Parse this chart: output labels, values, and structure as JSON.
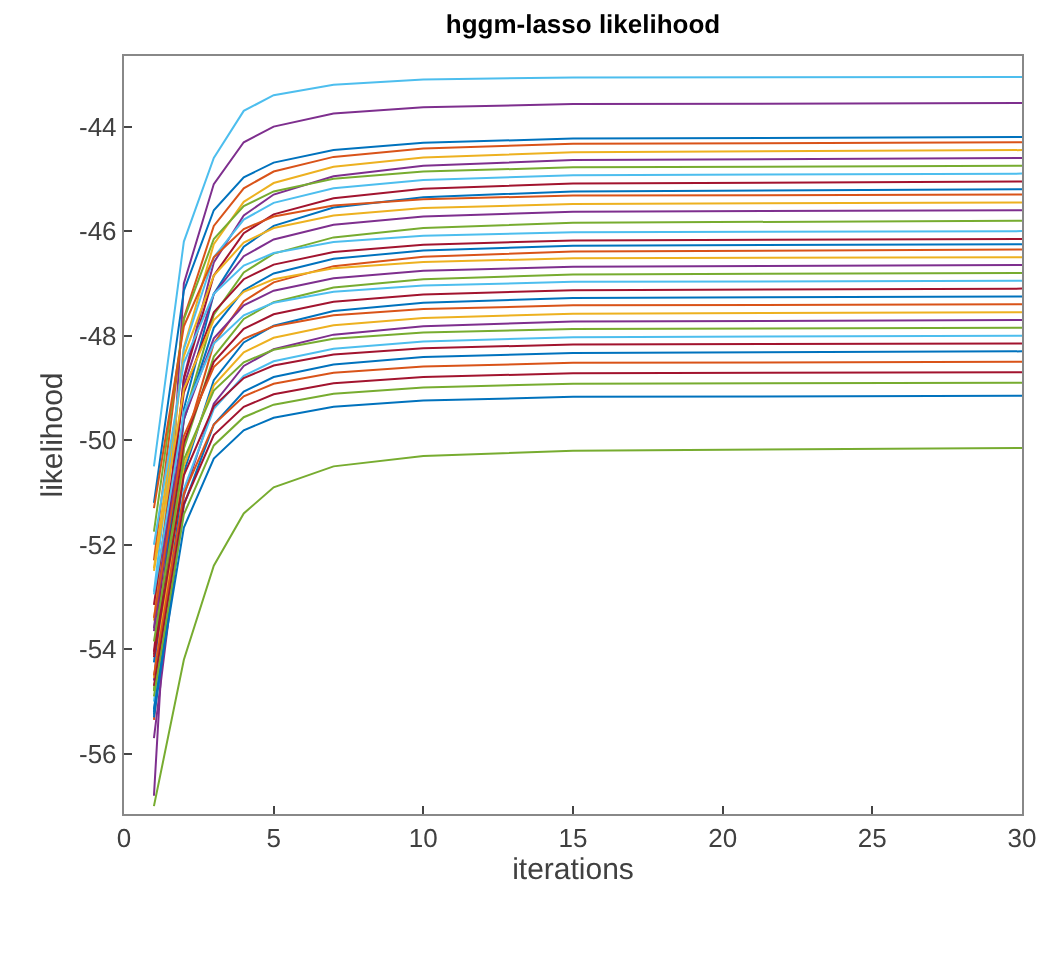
{
  "chart_data": {
    "type": "line",
    "title": "hggm-lasso likelihood",
    "xlabel": "iterations",
    "ylabel": "likelihood",
    "x": [
      1,
      2,
      3,
      4,
      5,
      7,
      10,
      15,
      30
    ],
    "xlim": [
      0,
      30
    ],
    "xticks": [
      0,
      5,
      10,
      15,
      20,
      25,
      30
    ],
    "ylim": [
      -57.15,
      -42.65
    ],
    "yticks": [
      -56,
      -54,
      -52,
      -50,
      -48,
      -46,
      -44
    ],
    "line_style": "solid",
    "series": [
      {
        "color": "#4dbeee",
        "values": [
          -50.5,
          -46.2,
          -44.6,
          -43.7,
          -43.4,
          -43.2,
          -43.1,
          -43.06,
          -43.05
        ]
      },
      {
        "color": "#7e2f8e",
        "values": [
          -56.8,
          -47.0,
          -45.1,
          -44.3,
          -44.0,
          -43.75,
          -43.63,
          -43.57,
          -43.55
        ]
      },
      {
        "color": "#77ac30",
        "values": [
          -57.0,
          -54.2,
          -52.4,
          -51.4,
          -50.9,
          -50.5,
          -50.3,
          -50.2,
          -50.15
        ]
      },
      {
        "color": "#0072bd",
        "values": [
          -51.2,
          -47.14,
          -45.6,
          -44.97,
          -44.69,
          -44.45,
          -44.31,
          -44.23,
          -44.2
        ]
      },
      {
        "color": "#d95319",
        "values": [
          -52.3,
          -47.66,
          -45.9,
          -45.18,
          -44.86,
          -44.58,
          -44.42,
          -44.33,
          -44.3
        ]
      },
      {
        "color": "#edb120",
        "values": [
          -53.45,
          -48.23,
          -46.25,
          -45.44,
          -45.08,
          -44.77,
          -44.59,
          -44.49,
          -44.45
        ]
      },
      {
        "color": "#7e2f8e",
        "values": [
          -54.6,
          -48.8,
          -46.6,
          -45.7,
          -45.3,
          -44.95,
          -44.75,
          -44.64,
          -44.6
        ]
      },
      {
        "color": "#77ac30",
        "values": [
          -51.75,
          -47.69,
          -46.15,
          -45.52,
          -45.24,
          -45.0,
          -44.86,
          -44.78,
          -44.75
        ]
      },
      {
        "color": "#4dbeee",
        "values": [
          -52.9,
          -48.26,
          -46.5,
          -45.78,
          -45.46,
          -45.18,
          -45.02,
          -44.93,
          -44.9
        ]
      },
      {
        "color": "#a2142f",
        "values": [
          -54.05,
          -48.83,
          -46.85,
          -46.04,
          -45.68,
          -45.37,
          -45.19,
          -45.09,
          -45.05
        ]
      },
      {
        "color": "#0072bd",
        "values": [
          -55.2,
          -49.4,
          -47.2,
          -46.3,
          -45.9,
          -45.55,
          -45.35,
          -45.24,
          -45.2
        ]
      },
      {
        "color": "#d95319",
        "values": [
          -51.3,
          -47.82,
          -46.5,
          -45.96,
          -45.72,
          -45.51,
          -45.39,
          -45.32,
          -45.3
        ]
      },
      {
        "color": "#edb120",
        "values": [
          -52.45,
          -48.39,
          -46.85,
          -46.22,
          -45.94,
          -45.7,
          -45.56,
          -45.48,
          -45.45
        ]
      },
      {
        "color": "#7e2f8e",
        "values": [
          -53.6,
          -48.96,
          -47.2,
          -46.48,
          -46.16,
          -45.88,
          -45.72,
          -45.63,
          -45.6
        ]
      },
      {
        "color": "#77ac30",
        "values": [
          -54.8,
          -49.58,
          -47.6,
          -46.79,
          -46.43,
          -46.12,
          -45.94,
          -45.84,
          -45.8
        ]
      },
      {
        "color": "#4dbeee",
        "values": [
          -52.0,
          -48.52,
          -47.2,
          -46.66,
          -46.42,
          -46.21,
          -46.09,
          -46.02,
          -46.0
        ]
      },
      {
        "color": "#a2142f",
        "values": [
          -53.15,
          -49.09,
          -47.55,
          -46.92,
          -46.64,
          -46.4,
          -46.26,
          -46.18,
          -46.15
        ]
      },
      {
        "color": "#0072bd",
        "values": [
          -54.25,
          -49.61,
          -47.85,
          -47.13,
          -46.81,
          -46.53,
          -46.37,
          -46.28,
          -46.25
        ]
      },
      {
        "color": "#d95319",
        "values": [
          -55.35,
          -50.13,
          -48.15,
          -47.34,
          -46.98,
          -46.67,
          -46.49,
          -46.39,
          -46.35
        ]
      },
      {
        "color": "#edb120",
        "values": [
          -52.5,
          -49.02,
          -47.7,
          -47.16,
          -46.92,
          -46.71,
          -46.59,
          -46.52,
          -46.5
        ]
      },
      {
        "color": "#7e2f8e",
        "values": [
          -53.65,
          -49.59,
          -48.05,
          -47.42,
          -47.14,
          -46.9,
          -46.76,
          -46.68,
          -46.65
        ]
      },
      {
        "color": "#77ac30",
        "values": [
          -54.8,
          -50.16,
          -48.4,
          -47.68,
          -47.36,
          -47.08,
          -46.92,
          -46.83,
          -46.8
        ]
      },
      {
        "color": "#4dbeee",
        "values": [
          -52.95,
          -49.47,
          -48.15,
          -47.61,
          -47.37,
          -47.16,
          -47.04,
          -46.97,
          -46.95
        ]
      },
      {
        "color": "#a2142f",
        "values": [
          -54.1,
          -50.04,
          -48.5,
          -47.87,
          -47.59,
          -47.35,
          -47.21,
          -47.13,
          -47.1
        ]
      },
      {
        "color": "#0072bd",
        "values": [
          -55.25,
          -50.61,
          -48.85,
          -48.13,
          -47.81,
          -47.53,
          -47.37,
          -47.28,
          -47.25
        ]
      },
      {
        "color": "#d95319",
        "values": [
          -53.4,
          -49.92,
          -48.6,
          -48.06,
          -47.82,
          -47.61,
          -47.49,
          -47.42,
          -47.4
        ]
      },
      {
        "color": "#edb120",
        "values": [
          -54.55,
          -50.49,
          -48.95,
          -48.32,
          -48.04,
          -47.8,
          -47.66,
          -47.58,
          -47.55
        ]
      },
      {
        "color": "#7e2f8e",
        "values": [
          -55.7,
          -51.06,
          -49.3,
          -48.58,
          -48.26,
          -47.98,
          -47.82,
          -47.73,
          -47.7
        ]
      },
      {
        "color": "#77ac30",
        "values": [
          -53.85,
          -50.37,
          -49.05,
          -48.51,
          -48.27,
          -48.06,
          -47.94,
          -47.87,
          -47.85
        ]
      },
      {
        "color": "#4dbeee",
        "values": [
          -55.0,
          -50.94,
          -49.4,
          -48.77,
          -48.49,
          -48.25,
          -48.11,
          -48.03,
          -48.0
        ]
      },
      {
        "color": "#a2142f",
        "values": [
          -54.15,
          -50.67,
          -49.35,
          -48.81,
          -48.57,
          -48.36,
          -48.24,
          -48.17,
          -48.15
        ]
      },
      {
        "color": "#0072bd",
        "values": [
          -55.3,
          -51.24,
          -49.7,
          -49.07,
          -48.79,
          -48.55,
          -48.41,
          -48.33,
          -48.3
        ]
      },
      {
        "color": "#d95319",
        "values": [
          -54.5,
          -51.02,
          -49.7,
          -49.16,
          -48.92,
          -48.71,
          -48.59,
          -48.52,
          -48.5
        ]
      },
      {
        "color": "#a2142f",
        "values": [
          -54.7,
          -51.22,
          -49.9,
          -49.36,
          -49.12,
          -48.91,
          -48.79,
          -48.72,
          -48.7
        ]
      },
      {
        "color": "#77ac30",
        "values": [
          -54.9,
          -51.42,
          -50.1,
          -49.56,
          -49.32,
          -49.11,
          -48.99,
          -48.92,
          -48.9
        ]
      },
      {
        "color": "#0072bd",
        "values": [
          -55.15,
          -51.67,
          -50.35,
          -49.81,
          -49.57,
          -49.36,
          -49.24,
          -49.17,
          -49.15
        ]
      }
    ]
  }
}
